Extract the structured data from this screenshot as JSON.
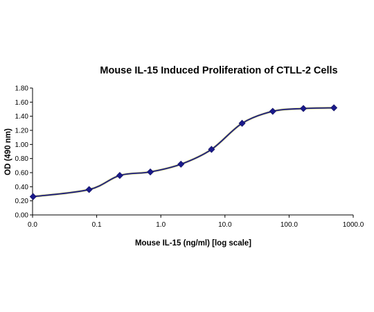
{
  "chart_data": {
    "type": "line",
    "title": "Mouse IL-15 Induced Proliferation of CTLL-2 Cells",
    "xlabel": "Mouse IL-15 (ng/ml) [log scale]",
    "ylabel": "OD (490 nm)",
    "x_scale": "log",
    "x_tick_labels": [
      "0.0",
      "0.1",
      "1.0",
      "10.0",
      "100.0",
      "1000.0"
    ],
    "y_tick_labels": [
      "0.00",
      "0.20",
      "0.40",
      "0.60",
      "0.80",
      "1.00",
      "1.20",
      "1.40",
      "1.60",
      "1.80"
    ],
    "ylim": [
      0,
      1.8
    ],
    "grid": false,
    "legend": "none",
    "series": [
      {
        "x": [
          0.0102,
          0.0762,
          0.229,
          0.686,
          2.06,
          6.17,
          18.5,
          55.6,
          167,
          500
        ],
        "values": [
          0.26,
          0.36,
          0.56,
          0.61,
          0.72,
          0.93,
          1.3,
          1.47,
          1.51,
          1.52
        ],
        "color": "#1a1a80",
        "marker": "diamond",
        "marker_color": "#1a1a8c"
      }
    ]
  }
}
